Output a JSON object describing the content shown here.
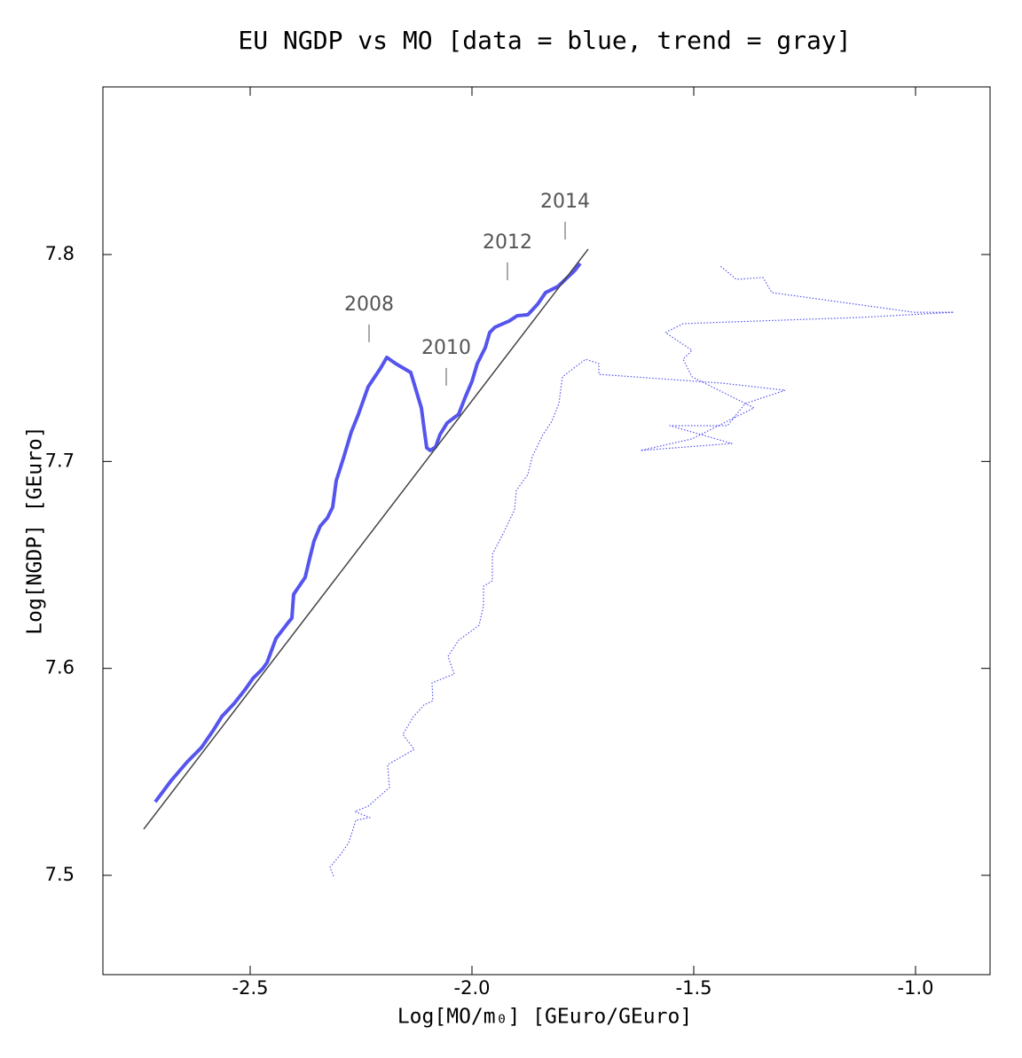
{
  "chart_data": {
    "type": "line",
    "title": "EU NGDP vs MO [data = blue, trend = gray]",
    "x_label": "Log[MO/m₀]  [GEuro/GEuro]",
    "y_label": "Log[NGDP]  [GEuro]",
    "xlim": [
      -2.832,
      -0.832
    ],
    "ylim": [
      7.452,
      7.881
    ],
    "xticks": [
      -2.5,
      {
        "value": -2.0,
        "label": "-2.0"
      },
      -1.5,
      {
        "value": -1.0,
        "label": "-1.0"
      }
    ],
    "yticks": [
      {
        "value": 7.5,
        "label": "7.5"
      },
      {
        "value": 7.6,
        "label": "7.6"
      },
      {
        "value": 7.7,
        "label": "7.7"
      },
      {
        "value": 7.8,
        "label": "7.8"
      }
    ],
    "series": [
      {
        "color": "#5555ee",
        "dash": "solid",
        "x": [
          -2.714,
          -2.678,
          -2.642,
          -2.61,
          -2.584,
          -2.564,
          -2.536,
          -2.512,
          -2.494,
          -2.472,
          -2.462,
          -2.442,
          -2.416,
          -2.406,
          -2.402,
          -2.376,
          -2.366,
          -2.356,
          -2.342,
          -2.326,
          -2.314,
          -2.306,
          -2.29,
          -2.272,
          -2.256,
          -2.234,
          -2.206,
          -2.192,
          -2.172,
          -2.138,
          -2.114,
          -2.108,
          -2.102,
          -2.094,
          -2.082,
          -2.072,
          -2.056,
          -2.03,
          -2.016,
          -2.0,
          -1.988,
          -1.97,
          -1.96,
          -1.948,
          -1.916,
          -1.898,
          -1.874,
          -1.852,
          -1.834,
          -1.806,
          -1.768,
          -1.756
        ],
        "values": [
          7.5355,
          7.5458,
          7.5548,
          7.5617,
          7.5698,
          7.5767,
          7.5831,
          7.5896,
          7.5951,
          7.5998,
          7.6028,
          7.6144,
          7.6217,
          7.6243,
          7.6358,
          7.644,
          7.653,
          7.6616,
          7.6688,
          7.6727,
          7.6779,
          7.6907,
          7.7014,
          7.7143,
          7.7228,
          7.7361,
          7.7451,
          7.7503,
          7.7473,
          7.743,
          7.7258,
          7.716,
          7.7066,
          7.7053,
          7.707,
          7.713,
          7.7186,
          7.7228,
          7.7306,
          7.7387,
          7.7473,
          7.755,
          7.7623,
          7.7649,
          7.7679,
          7.7704,
          7.7709,
          7.776,
          7.7816,
          7.7846,
          7.7923,
          7.7957
        ]
      },
      {
        "color": "#444444",
        "dash": "solid",
        "x": [
          -2.74,
          -1.738
        ],
        "values": [
          7.5223,
          7.8026
        ]
      },
      {
        "color": "#5555ee",
        "dash": "dotted",
        "x": [
          -2.312,
          -2.32,
          -2.294,
          -2.278,
          -2.268,
          -2.262,
          -2.23,
          -2.264,
          -2.234,
          -2.186,
          -2.19,
          -2.13,
          -2.156,
          -2.132,
          -2.108,
          -2.088,
          -2.09,
          -2.04,
          -2.054,
          -2.03,
          -1.984,
          -1.974,
          -1.974,
          -1.954,
          -1.954,
          -1.928,
          -1.904,
          -1.9,
          -1.874,
          -1.864,
          -1.84,
          -1.82,
          -1.804,
          -1.796,
          -1.744,
          -1.714,
          -1.714,
          -1.434,
          -1.294,
          -1.384,
          -1.424,
          -1.554,
          -1.414,
          -1.62,
          -1.504,
          -1.364,
          -1.504,
          -1.524,
          -1.504,
          -1.564,
          -1.524,
          -1.124,
          -0.914,
          -1.004,
          -1.324,
          -1.344,
          -1.404,
          -1.44
        ],
        "values": [
          7.4996,
          7.5039,
          7.5107,
          7.5158,
          7.5223,
          7.5266,
          7.5279,
          7.5308,
          7.5334,
          7.5424,
          7.5535,
          7.5608,
          7.5681,
          7.5767,
          7.5823,
          7.5844,
          7.593,
          7.5973,
          7.6058,
          7.6136,
          7.6208,
          7.6303,
          7.6397,
          7.6423,
          7.6551,
          7.6659,
          7.6766,
          7.686,
          7.6937,
          7.7023,
          7.713,
          7.7194,
          7.728,
          7.7409,
          7.7494,
          7.7473,
          7.7421,
          7.7378,
          7.7344,
          7.728,
          7.7173,
          7.7173,
          7.7087,
          7.7053,
          7.7109,
          7.7259,
          7.7409,
          7.7494,
          7.7537,
          7.7623,
          7.7666,
          7.7696,
          7.7721,
          7.7721,
          7.7816,
          7.7889,
          7.788,
          7.7944
        ]
      }
    ],
    "annotations": [
      {
        "text": "2008",
        "x": -2.232,
        "y": 7.7576
      },
      {
        "text": "2010",
        "x": -2.058,
        "y": 7.7366
      },
      {
        "text": "2012",
        "x": -1.92,
        "y": 7.7876
      },
      {
        "text": "2014",
        "x": -1.79,
        "y": 7.8073
      }
    ]
  }
}
